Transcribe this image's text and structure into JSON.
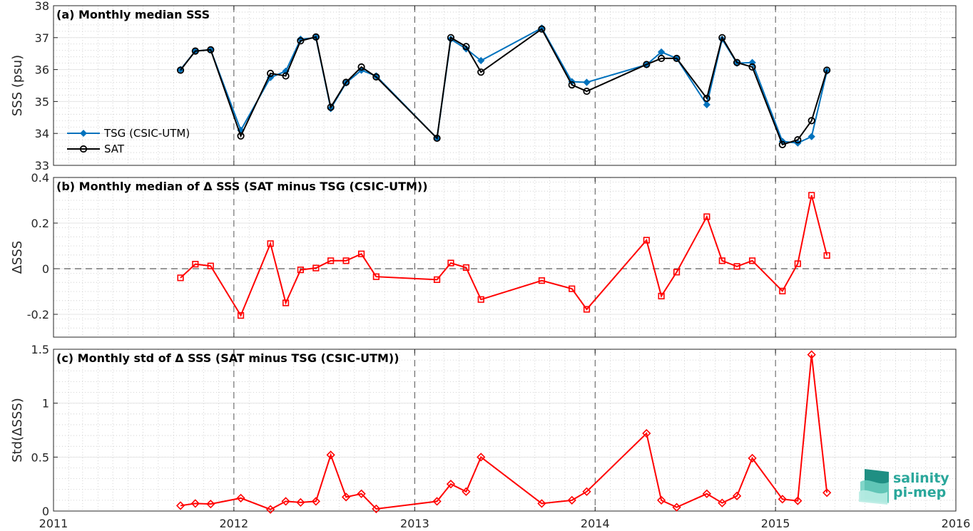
{
  "x_axis": {
    "range": [
      "2011-01-01",
      "2016-01-01"
    ],
    "ticks": [
      {
        "date": "2011-01-01",
        "label": "2011"
      },
      {
        "date": "2012-01-01",
        "label": "2012"
      },
      {
        "date": "2013-01-01",
        "label": "2013"
      },
      {
        "date": "2014-01-01",
        "label": "2014"
      },
      {
        "date": "2015-01-01",
        "label": "2015"
      },
      {
        "date": "2016-01-01",
        "label": "2016"
      }
    ]
  },
  "logo": {
    "line1": "salinity",
    "line2": "pi-mep"
  },
  "chart_data": [
    {
      "type": "line",
      "title": "(a) Monthly median SSS",
      "ylabel": "SSS (psu)",
      "ylim": [
        33,
        38
      ],
      "yticks": [
        33,
        34,
        35,
        36,
        37,
        38
      ],
      "ytick_labels": [
        "33",
        "34",
        "35",
        "36",
        "37",
        "38"
      ],
      "grid": true,
      "legend_position": "bottom-left",
      "x": [
        "2011-09-15",
        "2011-10-15",
        "2011-11-15",
        "2012-01-15",
        "2012-03-15",
        "2012-04-15",
        "2012-05-15",
        "2012-06-15",
        "2012-07-15",
        "2012-08-15",
        "2012-09-15",
        "2012-10-15",
        "2013-02-15",
        "2013-03-15",
        "2013-04-15",
        "2013-05-15",
        "2013-09-15",
        "2013-11-15",
        "2013-12-15",
        "2014-04-15",
        "2014-05-15",
        "2014-06-15",
        "2014-08-15",
        "2014-09-15",
        "2014-10-15",
        "2014-11-15",
        "2015-01-15",
        "2015-02-15",
        "2015-03-15",
        "2015-04-15"
      ],
      "series": [
        {
          "name": "TSG (CSIC-UTM)",
          "color": "#0072bd",
          "marker": "diamond",
          "values": [
            36.0,
            36.58,
            36.62,
            34.1,
            35.75,
            35.95,
            36.95,
            37.0,
            34.78,
            35.58,
            35.98,
            35.8,
            33.85,
            36.95,
            36.65,
            36.28,
            37.3,
            35.62,
            35.6,
            36.15,
            36.55,
            36.35,
            34.9,
            36.95,
            36.2,
            36.22,
            33.75,
            33.7,
            33.9,
            35.95
          ]
        },
        {
          "name": "SAT",
          "color": "#000000",
          "marker": "circle",
          "values": [
            35.98,
            36.58,
            36.62,
            33.92,
            35.88,
            35.8,
            36.9,
            37.02,
            34.82,
            35.6,
            36.08,
            35.77,
            33.85,
            37.0,
            36.72,
            35.92,
            37.27,
            35.52,
            35.32,
            36.16,
            36.35,
            36.35,
            35.1,
            37.0,
            36.22,
            36.08,
            33.65,
            33.8,
            34.4,
            35.98
          ]
        }
      ]
    },
    {
      "type": "line",
      "title": "(b) Monthly median of Δ SSS (SAT minus TSG (CSIC-UTM))",
      "ylabel": "ΔSSS",
      "ylim": [
        -0.3,
        0.4
      ],
      "yticks": [
        -0.2,
        0,
        0.2,
        0.4
      ],
      "ytick_labels": [
        "-0.2",
        "0",
        "0.2",
        "0.4"
      ],
      "zero_line": true,
      "grid": true,
      "x": [
        "2011-09-15",
        "2011-10-15",
        "2011-11-15",
        "2012-01-15",
        "2012-03-15",
        "2012-04-15",
        "2012-05-15",
        "2012-06-15",
        "2012-07-15",
        "2012-08-15",
        "2012-09-15",
        "2012-10-15",
        "2013-02-15",
        "2013-03-15",
        "2013-04-15",
        "2013-05-15",
        "2013-09-15",
        "2013-11-15",
        "2013-12-15",
        "2014-04-15",
        "2014-05-15",
        "2014-06-15",
        "2014-08-15",
        "2014-09-15",
        "2014-10-15",
        "2014-11-15",
        "2015-01-15",
        "2015-02-15",
        "2015-03-15",
        "2015-04-15"
      ],
      "series": [
        {
          "color": "#ff0000",
          "marker": "square",
          "values": [
            -0.04,
            0.02,
            0.012,
            -0.205,
            0.11,
            -0.15,
            -0.005,
            0.003,
            0.035,
            0.035,
            0.065,
            -0.035,
            -0.048,
            0.025,
            0.005,
            -0.135,
            -0.052,
            -0.088,
            -0.178,
            0.125,
            -0.12,
            -0.015,
            0.228,
            0.035,
            0.01,
            0.035,
            -0.098,
            0.022,
            0.322,
            0.058
          ]
        }
      ]
    },
    {
      "type": "line",
      "title": "(c) Monthly std of Δ SSS (SAT minus TSG (CSIC-UTM))",
      "ylabel": "Std(ΔSSS)",
      "ylim": [
        0,
        1.5
      ],
      "yticks": [
        0,
        0.5,
        1,
        1.5
      ],
      "ytick_labels": [
        "0",
        "0.5",
        "1",
        "1.5"
      ],
      "grid": true,
      "x": [
        "2011-09-15",
        "2011-10-15",
        "2011-11-15",
        "2012-01-15",
        "2012-03-15",
        "2012-04-15",
        "2012-05-15",
        "2012-06-15",
        "2012-07-15",
        "2012-08-15",
        "2012-09-15",
        "2012-10-15",
        "2013-02-15",
        "2013-03-15",
        "2013-04-15",
        "2013-05-15",
        "2013-09-15",
        "2013-11-15",
        "2013-12-15",
        "2014-04-15",
        "2014-05-15",
        "2014-06-15",
        "2014-08-15",
        "2014-09-15",
        "2014-10-15",
        "2014-11-15",
        "2015-01-15",
        "2015-02-15",
        "2015-03-15",
        "2015-04-15"
      ],
      "series": [
        {
          "color": "#ff0000",
          "marker": "diamond",
          "values": [
            0.05,
            0.07,
            0.065,
            0.12,
            0.015,
            0.09,
            0.08,
            0.09,
            0.52,
            0.13,
            0.16,
            0.02,
            0.09,
            0.25,
            0.18,
            0.5,
            0.07,
            0.1,
            0.18,
            0.72,
            0.1,
            0.035,
            0.16,
            0.075,
            0.14,
            0.49,
            0.11,
            0.095,
            1.45,
            0.17
          ]
        }
      ]
    }
  ]
}
